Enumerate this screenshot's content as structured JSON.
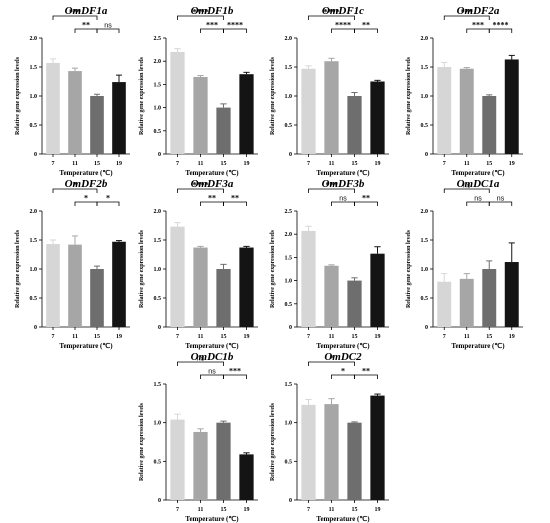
{
  "colors": [
    "#d6d6d6",
    "#a6a6a6",
    "#6e6e6e",
    "#141414"
  ],
  "chart_data": [
    {
      "type": "bar",
      "title": "OmDF1a",
      "categories": [
        "7",
        "11",
        "15",
        "19"
      ],
      "values": [
        1.57,
        1.43,
        1.0,
        1.24
      ],
      "errors": [
        0.07,
        0.05,
        0.03,
        0.12
      ],
      "ylim": [
        0,
        2.0
      ],
      "yticks": [
        "0",
        "0.5",
        "1.0",
        "1.5",
        "2.0"
      ],
      "xlabel": "Temperature (℃)",
      "ylabel": "Relative gene expression levels",
      "significance": [
        {
          "from": 0,
          "to": 2,
          "label": "***"
        },
        {
          "from": 1,
          "to": 2,
          "label": "**"
        },
        {
          "from": 2,
          "to": 3,
          "label": "ns"
        }
      ]
    },
    {
      "type": "bar",
      "title": "OmDF1b",
      "categories": [
        "7",
        "11",
        "15",
        "19"
      ],
      "values": [
        2.2,
        1.66,
        1.0,
        1.72
      ],
      "errors": [
        0.07,
        0.03,
        0.08,
        0.04
      ],
      "ylim": [
        0,
        2.5
      ],
      "yticks": [
        "0",
        "0.5",
        "1.0",
        "1.5",
        "2.0",
        "2.5"
      ],
      "xlabel": "Temperature (℃)",
      "ylabel": "Relative gene expression levels",
      "significance": [
        {
          "from": 0,
          "to": 2,
          "label": "****"
        },
        {
          "from": 1,
          "to": 2,
          "label": "***"
        },
        {
          "from": 2,
          "to": 3,
          "label": "****"
        }
      ]
    },
    {
      "type": "bar",
      "title": "OmDF1c",
      "categories": [
        "7",
        "11",
        "15",
        "19"
      ],
      "values": [
        1.47,
        1.6,
        1.0,
        1.25
      ],
      "errors": [
        0.05,
        0.05,
        0.06,
        0.02
      ],
      "ylim": [
        0,
        2.0
      ],
      "yticks": [
        "0",
        "0.5",
        "1.0",
        "1.5",
        "2.0"
      ],
      "xlabel": "Temperature (℃)",
      "ylabel": "Relative gene expression levels",
      "significance": [
        {
          "from": 0,
          "to": 2,
          "label": "****"
        },
        {
          "from": 1,
          "to": 2,
          "label": "****"
        },
        {
          "from": 2,
          "to": 3,
          "label": "**"
        }
      ]
    },
    {
      "type": "bar",
      "title": "OmDF2a",
      "categories": [
        "7",
        "11",
        "15",
        "19"
      ],
      "values": [
        1.5,
        1.47,
        1.0,
        1.63
      ],
      "errors": [
        0.08,
        0.02,
        0.02,
        0.07
      ],
      "ylim": [
        0,
        2.0
      ],
      "yticks": [
        "0",
        "0.5",
        "1.0",
        "1.5",
        "2.0"
      ],
      "xlabel": "Temperature (℃)",
      "ylabel": "Relative gene expression levels",
      "significance": [
        {
          "from": 0,
          "to": 2,
          "label": "***"
        },
        {
          "from": 1,
          "to": 2,
          "label": "***"
        },
        {
          "from": 2,
          "to": 3,
          "label": "****"
        }
      ]
    },
    {
      "type": "bar",
      "title": "OmDF2b",
      "categories": [
        "7",
        "11",
        "15",
        "19"
      ],
      "values": [
        1.43,
        1.42,
        1.0,
        1.47
      ],
      "errors": [
        0.07,
        0.15,
        0.05,
        0.02
      ],
      "ylim": [
        0,
        2.0
      ],
      "yticks": [
        "0",
        "0.5",
        "1.0",
        "1.5",
        "2.0"
      ],
      "xlabel": "Temperature (℃)",
      "ylabel": "Relative gene expression levels",
      "significance": [
        {
          "from": 0,
          "to": 2,
          "label": "*"
        },
        {
          "from": 1,
          "to": 2,
          "label": "*"
        },
        {
          "from": 2,
          "to": 3,
          "label": "*"
        }
      ]
    },
    {
      "type": "bar",
      "title": "OmDF3a",
      "categories": [
        "7",
        "11",
        "15",
        "19"
      ],
      "values": [
        1.73,
        1.37,
        1.0,
        1.37
      ],
      "errors": [
        0.07,
        0.02,
        0.08,
        0.02
      ],
      "ylim": [
        0,
        2.0
      ],
      "yticks": [
        "0",
        "0.5",
        "1.0",
        "1.5",
        "2.0"
      ],
      "xlabel": "Temperature (℃)",
      "ylabel": "Relative gene expression levels",
      "significance": [
        {
          "from": 0,
          "to": 2,
          "label": "****"
        },
        {
          "from": 1,
          "to": 2,
          "label": "**"
        },
        {
          "from": 2,
          "to": 3,
          "label": "**"
        }
      ]
    },
    {
      "type": "bar",
      "title": "OmDF3b",
      "categories": [
        "7",
        "11",
        "15",
        "19"
      ],
      "values": [
        2.07,
        1.32,
        1.0,
        1.58
      ],
      "errors": [
        0.1,
        0.02,
        0.06,
        0.15
      ],
      "ylim": [
        0,
        2.5
      ],
      "yticks": [
        "0",
        "0.5",
        "1.0",
        "1.5",
        "2.0",
        "2.5"
      ],
      "xlabel": "Temperature (℃)",
      "ylabel": "Relative gene expression levels",
      "significance": [
        {
          "from": 0,
          "to": 2,
          "label": "***"
        },
        {
          "from": 1,
          "to": 2,
          "label": "ns"
        },
        {
          "from": 2,
          "to": 3,
          "label": "**"
        }
      ]
    },
    {
      "type": "bar",
      "title": "OmDC1a",
      "categories": [
        "7",
        "11",
        "15",
        "19"
      ],
      "values": [
        0.78,
        0.83,
        1.0,
        1.12
      ],
      "errors": [
        0.14,
        0.09,
        0.14,
        0.33
      ],
      "ylim": [
        0,
        2.0
      ],
      "yticks": [
        "0",
        "0.5",
        "1.0",
        "1.5",
        "2.0"
      ],
      "xlabel": "Temperature (℃)",
      "ylabel": "Relative gene expression levels",
      "significance": [
        {
          "from": 0,
          "to": 2,
          "label": "ns"
        },
        {
          "from": 1,
          "to": 2,
          "label": "ns"
        },
        {
          "from": 2,
          "to": 3,
          "label": "ns"
        }
      ]
    },
    {
      "type": "bar",
      "title": "OmDC1b",
      "categories": [
        "7",
        "11",
        "15",
        "19"
      ],
      "values": [
        1.04,
        0.88,
        1.0,
        0.59
      ],
      "errors": [
        0.07,
        0.04,
        0.02,
        0.02
      ],
      "ylim": [
        0,
        1.5
      ],
      "yticks": [
        "0",
        "0.5",
        "1.0",
        "1.5"
      ],
      "xlabel": "Temperature (℃)",
      "ylabel": "Relative gene expression levels",
      "significance": [
        {
          "from": 0,
          "to": 2,
          "label": "ns"
        },
        {
          "from": 1,
          "to": 2,
          "label": "ns"
        },
        {
          "from": 2,
          "to": 3,
          "label": "***"
        }
      ]
    },
    {
      "type": "bar",
      "title": "OmDC2",
      "categories": [
        "7",
        "11",
        "15",
        "19"
      ],
      "values": [
        1.23,
        1.24,
        1.0,
        1.35
      ],
      "errors": [
        0.07,
        0.07,
        0.01,
        0.02
      ],
      "ylim": [
        0,
        1.5
      ],
      "yticks": [
        "0",
        "0.5",
        "1.0",
        "1.5"
      ],
      "xlabel": "Temperature (℃)",
      "ylabel": "Relative gene expression levels",
      "significance": [
        {
          "from": 0,
          "to": 2,
          "label": "*"
        },
        {
          "from": 1,
          "to": 2,
          "label": "*"
        },
        {
          "from": 2,
          "to": 3,
          "label": "**"
        }
      ]
    }
  ]
}
